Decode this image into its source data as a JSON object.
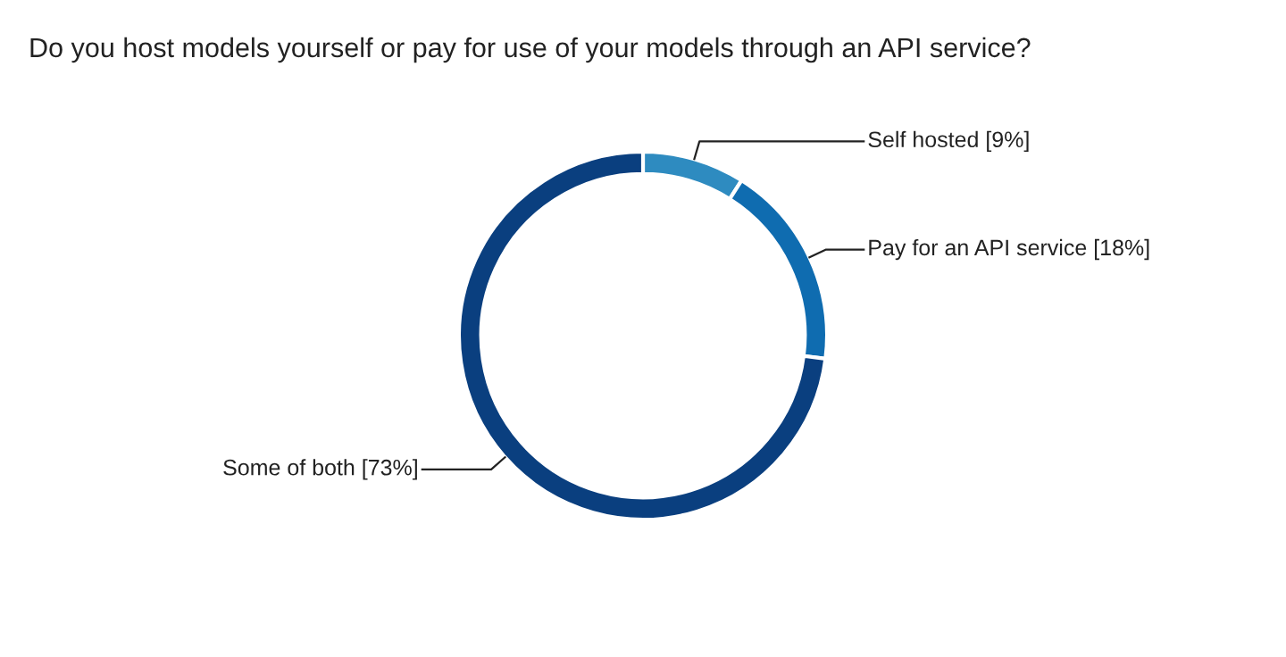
{
  "chart_data": {
    "type": "donut",
    "title": "Do you host models yourself or pay for use of your models through an API service?",
    "categories": [
      "Self hosted [9%]",
      "Pay for an API service [18%]",
      "Some of both [73%]"
    ],
    "values": [
      9,
      18,
      73
    ],
    "colors": [
      "#2e8bc0",
      "#0f6cb0",
      "#0a3f7f"
    ]
  }
}
